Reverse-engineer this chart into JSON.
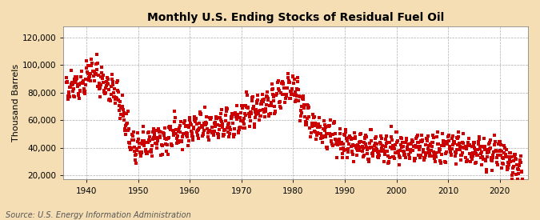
{
  "title": "Monthly U.S. Ending Stocks of Residual Fuel Oil",
  "ylabel": "Thousand Barrels",
  "source": "Source: U.S. Energy Information Administration",
  "outer_bg": "#f5deb3",
  "plot_bg": "#ffffff",
  "line_color": "#cc0000",
  "xlim": [
    1935.5,
    2025.5
  ],
  "ylim": [
    17000,
    128000
  ],
  "yticks": [
    20000,
    40000,
    60000,
    80000,
    100000,
    120000
  ],
  "ytick_labels": [
    "20,000",
    "40,000",
    "60,000",
    "80,000",
    "100,000",
    "120,000"
  ],
  "xticks": [
    1940,
    1950,
    1960,
    1970,
    1980,
    1990,
    2000,
    2010,
    2020
  ],
  "title_fontsize": 10,
  "label_fontsize": 8,
  "tick_fontsize": 7.5,
  "source_fontsize": 7,
  "marker_size": 2.2,
  "seed": 42,
  "year_means": {
    "1936": 82000,
    "1937": 88000,
    "1938": 85000,
    "1939": 88000,
    "1940": 95000,
    "1941": 96000,
    "1942": 90000,
    "1943": 86000,
    "1944": 83000,
    "1945": 80000,
    "1946": 72000,
    "1947": 60000,
    "1948": 45000,
    "1949": 38000,
    "1950": 40000,
    "1951": 42000,
    "1952": 44000,
    "1953": 45000,
    "1954": 47000,
    "1955": 46000,
    "1956": 50000,
    "1957": 52000,
    "1958": 50000,
    "1959": 52000,
    "1960": 54000,
    "1961": 55000,
    "1962": 56000,
    "1963": 55000,
    "1964": 57000,
    "1965": 57000,
    "1966": 56000,
    "1967": 57000,
    "1968": 58000,
    "1969": 60000,
    "1970": 63000,
    "1971": 66000,
    "1972": 68000,
    "1973": 70000,
    "1974": 72000,
    "1975": 72000,
    "1976": 76000,
    "1977": 80000,
    "1978": 82000,
    "1979": 85000,
    "1980": 84000,
    "1981": 72000,
    "1982": 64000,
    "1983": 58000,
    "1984": 54000,
    "1985": 52000,
    "1986": 50000,
    "1987": 48000,
    "1988": 46000,
    "1989": 44000,
    "1990": 43000,
    "1991": 43000,
    "1992": 42000,
    "1993": 42000,
    "1994": 41000,
    "1995": 41000,
    "1996": 40000,
    "1997": 40000,
    "1998": 40000,
    "1999": 39000,
    "2000": 39000,
    "2001": 39000,
    "2002": 39000,
    "2003": 40000,
    "2004": 40000,
    "2005": 40000,
    "2006": 40000,
    "2007": 39000,
    "2008": 38000,
    "2009": 38000,
    "2010": 39000,
    "2011": 40000,
    "2012": 40000,
    "2013": 39000,
    "2014": 38000,
    "2015": 37000,
    "2016": 37000,
    "2017": 37000,
    "2018": 37000,
    "2019": 36000,
    "2020": 34000,
    "2021": 31000,
    "2022": 28000,
    "2023": 26000,
    "2024": 24000
  }
}
